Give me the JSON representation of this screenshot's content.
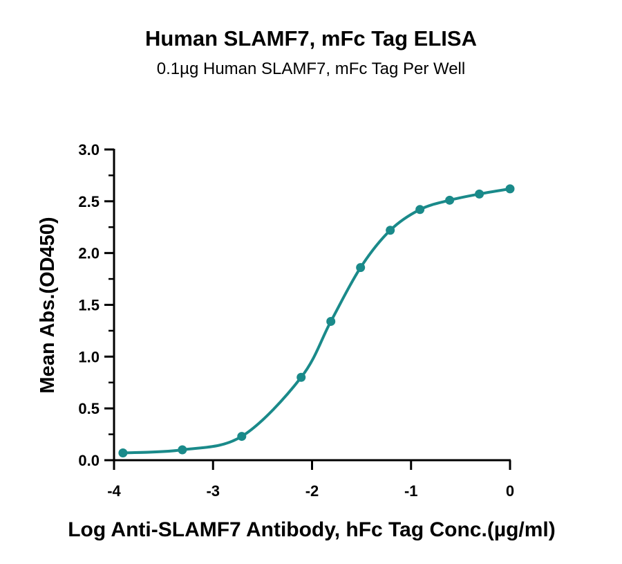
{
  "chart_data": {
    "type": "line",
    "title": "Human SLAMF7, mFc Tag ELISA",
    "subtitle": "0.1µg Human SLAMF7, mFc Tag Per Well",
    "xlabel": "Log Anti-SLAMF7 Antibody, hFc Tag Conc.(µg/ml)",
    "ylabel": "Mean Abs.(OD450)",
    "xlim": [
      -4,
      0
    ],
    "ylim": [
      0,
      3
    ],
    "xticks": [
      "-4",
      "-3",
      "-2",
      "-1",
      "0"
    ],
    "yticks": [
      "0.0",
      "0.5",
      "1.0",
      "1.5",
      "2.0",
      "2.5",
      "3.0"
    ],
    "grid": false,
    "color": "#1a8a8a",
    "series": [
      {
        "x": [
          -3.91,
          -3.31,
          -2.71,
          -2.11,
          -1.81,
          -1.51,
          -1.21,
          -0.91,
          -0.61,
          -0.31,
          0.0
        ],
        "y": [
          0.07,
          0.1,
          0.23,
          0.8,
          1.34,
          1.86,
          2.22,
          2.42,
          2.51,
          2.57,
          2.62
        ]
      }
    ]
  }
}
